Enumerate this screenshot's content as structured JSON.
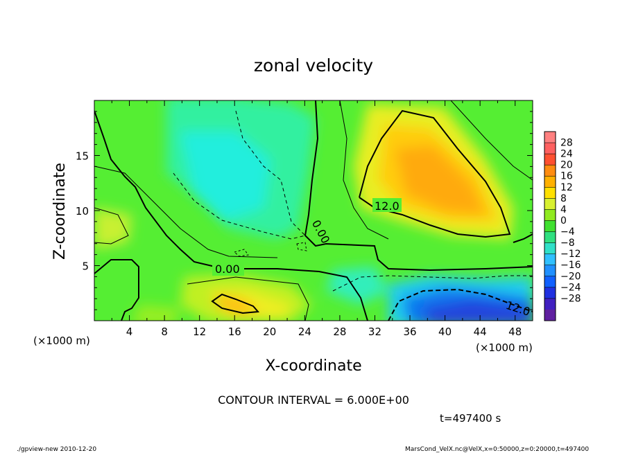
{
  "chart_data": {
    "type": "heatmap",
    "title": "zonal velocity",
    "xlabel": "X-coordinate",
    "ylabel": "Z-coordinate",
    "x_unit": "(×1000 m)",
    "y_unit": "(×1000 m)",
    "xlim": [
      0,
      50
    ],
    "ylim": [
      0,
      20
    ],
    "x_ticks": [
      "4",
      "8",
      "12",
      "16",
      "20",
      "24",
      "28",
      "32",
      "36",
      "40",
      "44",
      "48"
    ],
    "y_ticks": [
      "5",
      "10",
      "15"
    ],
    "colorbar_ticks": [
      "28",
      "24",
      "20",
      "16",
      "12",
      "8",
      "4",
      "0",
      "−4",
      "−8",
      "−12",
      "−16",
      "−20",
      "−24",
      "−28"
    ],
    "colorbar_levels": [
      28,
      24,
      20,
      16,
      12,
      8,
      4,
      0,
      -4,
      -8,
      -12,
      -16,
      -20,
      -24,
      -28
    ],
    "contour_labels": [
      "12.0",
      "0.00",
      "0.00",
      "12.0"
    ],
    "contour_interval": "CONTOUR INTERVAL = 6.000E+00",
    "time": "t=497400 s",
    "footer_left": "./gpview-new  2010-12-20",
    "footer_right": "MarsCond_VelX.nc@VelX,x=0:50000,z=0:20000,t=497400"
  }
}
